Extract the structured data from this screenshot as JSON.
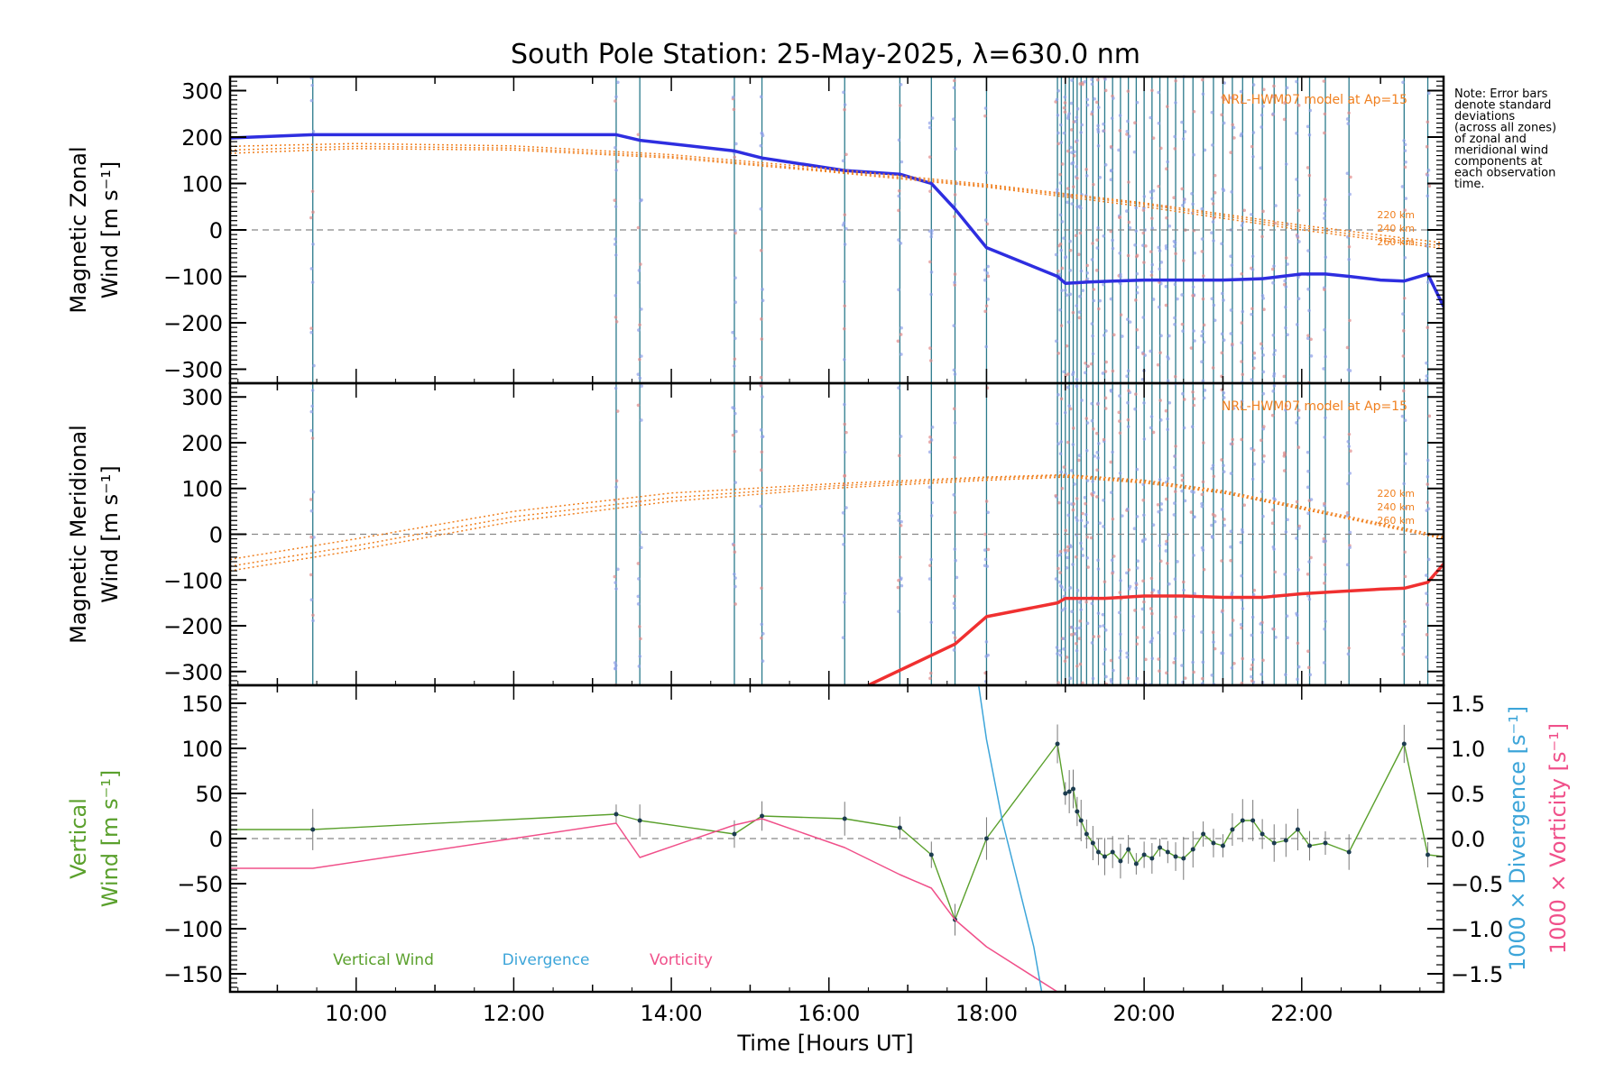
{
  "chart_data": {
    "type": "line",
    "title": "South Pole Station: 25-May-2025, λ=630.0 nm",
    "xlabel": "Time [Hours UT]",
    "xlim": [
      8.4,
      23.8
    ],
    "x_ticks": [
      "10:00",
      "12:00",
      "14:00",
      "16:00",
      "18:00",
      "20:00",
      "22:00"
    ],
    "x_tick_values": [
      10,
      12,
      14,
      16,
      18,
      20,
      22
    ],
    "note": [
      "Note: Error bars",
      "denote standard",
      "deviations",
      "(across all zones)",
      "of zonal and",
      "meridional wind",
      "components at",
      "each observation",
      "time."
    ],
    "obs_times": [
      9.45,
      13.3,
      13.6,
      14.8,
      15.15,
      16.2,
      16.9,
      17.3,
      17.6,
      18.0,
      18.9,
      18.95,
      19.0,
      19.05,
      19.1,
      19.15,
      19.2,
      19.27,
      19.35,
      19.42,
      19.5,
      19.6,
      19.7,
      19.8,
      19.9,
      20.0,
      20.1,
      20.2,
      20.3,
      20.4,
      20.5,
      20.62,
      20.75,
      20.88,
      21.0,
      21.12,
      21.25,
      21.38,
      21.5,
      21.65,
      21.8,
      21.95,
      22.1,
      22.3,
      22.6,
      23.3,
      23.6
    ],
    "panels": [
      {
        "id": "zonal",
        "ylabel": "Magnetic Zonal Wind [m s⁻¹]",
        "ylim": [
          -330,
          330
        ],
        "y_ticks": [
          300,
          200,
          100,
          0,
          -100,
          -200,
          -300
        ],
        "y_tick_labels": [
          "300",
          "200",
          "100",
          "0",
          "−100",
          "−200",
          "−300"
        ],
        "model_label": "NRL-HWM07 model at Ap=15",
        "altitude_labels": [
          "220 km",
          "240 km",
          "260 km"
        ],
        "series": [
          {
            "name": "Zonal wind",
            "color": "#2e2ee0",
            "x": [
              8.4,
              9.45,
              13.3,
              13.6,
              14.8,
              15.15,
              16.2,
              16.9,
              17.3,
              17.6,
              18.0,
              18.9,
              19.0,
              19.3,
              19.6,
              20.0,
              20.5,
              21.0,
              21.5,
              22.0,
              22.3,
              22.6,
              23.0,
              23.3,
              23.6,
              23.8
            ],
            "y": [
              198,
              205,
              205,
              193,
              170,
              155,
              128,
              120,
              100,
              45,
              -38,
              -100,
              -115,
              -112,
              -110,
              -108,
              -108,
              -108,
              -105,
              -95,
              -95,
              -100,
              -108,
              -110,
              -95,
              -165
            ]
          },
          {
            "name": "HWM 220 km",
            "color": "#f08020",
            "x": [
              8.4,
              10.0,
              12.0,
              14.0,
              16.0,
              18.0,
              20.0,
              22.0,
              23.8
            ],
            "y": [
              172,
              180,
              176,
              158,
              128,
              95,
              55,
              5,
              -35
            ]
          },
          {
            "name": "HWM 240 km",
            "color": "#f08020",
            "x": [
              8.4,
              10.0,
              12.0,
              14.0,
              16.0,
              18.0,
              20.0,
              22.0,
              23.8
            ],
            "y": [
              180,
              186,
              181,
              162,
              132,
              98,
              58,
              10,
              -28
            ]
          },
          {
            "name": "HWM 260 km",
            "color": "#f08020",
            "x": [
              8.4,
              10.0,
              12.0,
              14.0,
              16.0,
              18.0,
              20.0,
              22.0,
              23.8
            ],
            "y": [
              165,
              175,
              172,
              155,
              125,
              92,
              50,
              0,
              -40
            ]
          }
        ]
      },
      {
        "id": "meridional",
        "ylabel": "Magnetic Meridional Wind [m s⁻¹]",
        "ylim": [
          -330,
          330
        ],
        "y_ticks": [
          300,
          200,
          100,
          0,
          -100,
          -200,
          -300
        ],
        "y_tick_labels": [
          "300",
          "200",
          "100",
          "0",
          "−100",
          "−200",
          "−300"
        ],
        "model_label": "NRL-HWM07 model at Ap=15",
        "altitude_labels": [
          "220 km",
          "240 km",
          "260 km"
        ],
        "series": [
          {
            "name": "Meridional wind",
            "color": "#f03030",
            "x": [
              16.5,
              17.6,
              18.0,
              18.9,
              19.0,
              19.5,
              20.0,
              20.5,
              21.0,
              21.5,
              22.0,
              22.5,
              23.0,
              23.3,
              23.6,
              23.8
            ],
            "y": [
              -330,
              -240,
              -180,
              -150,
              -140,
              -140,
              -135,
              -135,
              -138,
              -138,
              -130,
              -125,
              -120,
              -118,
              -105,
              -65
            ]
          },
          {
            "name": "HWM 220 km",
            "color": "#f08020",
            "x": [
              8.4,
              10.0,
              12.0,
              14.0,
              16.0,
              18.0,
              19.0,
              20.0,
              21.0,
              22.0,
              23.8
            ],
            "y": [
              -55,
              -10,
              50,
              90,
              110,
              125,
              130,
              118,
              95,
              60,
              -5
            ]
          },
          {
            "name": "HWM 240 km",
            "color": "#f08020",
            "x": [
              8.4,
              10.0,
              12.0,
              14.0,
              16.0,
              18.0,
              19.0,
              20.0,
              21.0,
              22.0,
              23.8
            ],
            "y": [
              -70,
              -25,
              38,
              80,
              105,
              122,
              128,
              115,
              92,
              57,
              -8
            ]
          },
          {
            "name": "HWM 260 km",
            "color": "#f08020",
            "x": [
              8.4,
              10.0,
              12.0,
              14.0,
              16.0,
              18.0,
              19.0,
              20.0,
              21.0,
              22.0,
              23.8
            ],
            "y": [
              -80,
              -35,
              28,
              72,
              100,
              118,
              125,
              112,
              90,
              55,
              -10
            ]
          }
        ]
      },
      {
        "id": "vertical",
        "ylabel": "Vertical Wind [m s⁻¹]",
        "ylim": [
          -170,
          170
        ],
        "y_ticks": [
          150,
          100,
          50,
          0,
          -50,
          -100,
          -150
        ],
        "y_tick_labels": [
          "150",
          "100",
          "50",
          "0",
          "−50",
          "−100",
          "−150"
        ],
        "right_ylabel_divergence": "1000 × Divergence [s⁻¹]",
        "right_ylabel_vorticity": "1000 × Vorticity [s⁻¹]",
        "right_ylim": [
          -1.7,
          1.7
        ],
        "right_ticks": [
          1.5,
          1.0,
          0.5,
          0.0,
          -0.5,
          -1.0,
          -1.5
        ],
        "right_tick_labels": [
          "1.5",
          "1.0",
          "0.5",
          "0.0",
          "−0.5",
          "−1.0",
          "−1.5"
        ],
        "legend": [
          "Vertical Wind",
          "Divergence",
          "Vorticity"
        ],
        "series": [
          {
            "name": "Vertical Wind",
            "color": "#5aa02c",
            "x": [
              8.4,
              9.45,
              13.3,
              13.6,
              14.8,
              15.15,
              16.2,
              16.9,
              17.3,
              17.6,
              18.0,
              18.9,
              19.0,
              19.05,
              19.1,
              19.15,
              19.2,
              19.27,
              19.35,
              19.42,
              19.5,
              19.6,
              19.7,
              19.8,
              19.9,
              20.0,
              20.1,
              20.2,
              20.3,
              20.4,
              20.5,
              20.62,
              20.75,
              20.88,
              21.0,
              21.12,
              21.25,
              21.38,
              21.5,
              21.65,
              21.8,
              21.95,
              22.1,
              22.3,
              22.6,
              23.3,
              23.6,
              23.8
            ],
            "y": [
              10,
              10,
              27,
              20,
              5,
              25,
              22,
              12,
              -18,
              -90,
              0,
              105,
              50,
              52,
              55,
              30,
              20,
              5,
              -5,
              -15,
              -20,
              -15,
              -25,
              -12,
              -28,
              -18,
              -22,
              -10,
              -15,
              -20,
              -22,
              -12,
              5,
              -5,
              -8,
              10,
              20,
              20,
              5,
              -5,
              -2,
              10,
              -8,
              -5,
              -15,
              105,
              -18,
              -20
            ]
          },
          {
            "name": "Vorticity",
            "color": "#f0508a",
            "x": [
              8.4,
              9.45,
              13.3,
              13.6,
              14.8,
              15.15,
              16.2,
              16.9,
              17.3,
              17.6,
              18.0,
              18.9
            ],
            "y": [
              -0.33,
              -0.33,
              0.17,
              -0.21,
              0.15,
              0.22,
              -0.1,
              -0.4,
              -0.55,
              -0.9,
              -1.2,
              -1.7
            ]
          },
          {
            "name": "Divergence",
            "color": "#3da5d9",
            "x": [
              17.9,
              18.0,
              18.2,
              18.4,
              18.6,
              18.7
            ],
            "y": [
              1.7,
              1.1,
              0.2,
              -0.5,
              -1.2,
              -1.7
            ]
          }
        ]
      }
    ]
  }
}
